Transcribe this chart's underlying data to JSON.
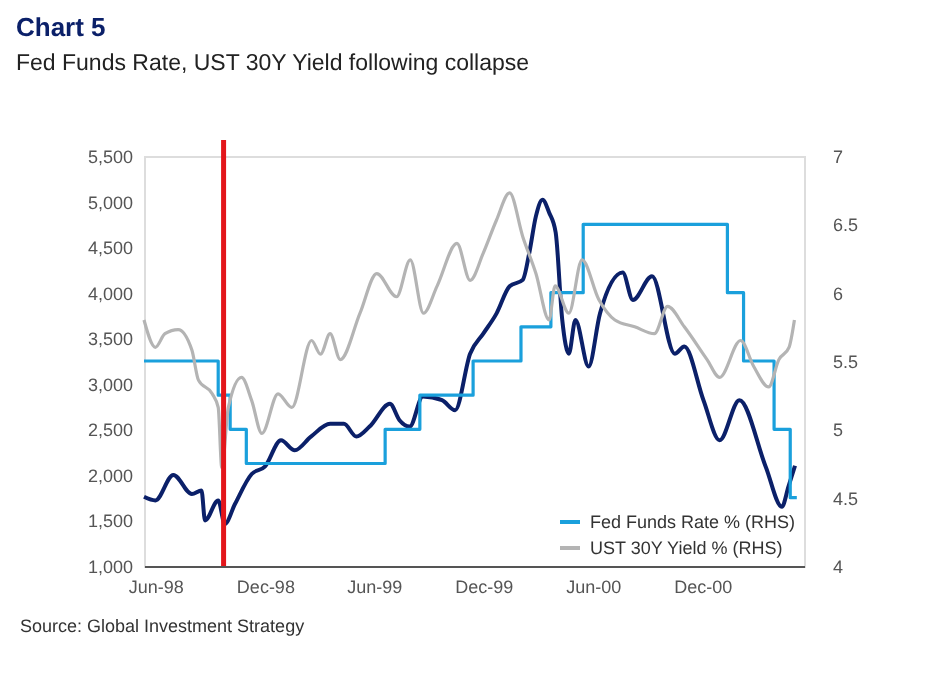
{
  "chart_data": {
    "type": "line",
    "title": "Chart 5",
    "subtitle": "Fed Funds Rate, UST 30Y Yield following collapse",
    "xlim": [
      "1998-05-13",
      "2001-05-20"
    ],
    "xticks": [
      {
        "value": "1998-06-01",
        "label": "Jun-98"
      },
      {
        "value": "1998-12-01",
        "label": "Dec-98"
      },
      {
        "value": "1999-06-01",
        "label": "Jun-99"
      },
      {
        "value": "1999-12-01",
        "label": "Dec-99"
      },
      {
        "value": "2000-06-01",
        "label": "Jun-00"
      },
      {
        "value": "2000-12-01",
        "label": "Dec-00"
      }
    ],
    "ylim": [
      1000,
      5500
    ],
    "yticks": [
      {
        "value": 1000,
        "label": "1,000"
      },
      {
        "value": 1500,
        "label": "1,500"
      },
      {
        "value": 2000,
        "label": "2,000"
      },
      {
        "value": 2500,
        "label": "2,500"
      },
      {
        "value": 3000,
        "label": "3,000"
      },
      {
        "value": 3500,
        "label": "3,500"
      },
      {
        "value": 4000,
        "label": "4,000"
      },
      {
        "value": 4500,
        "label": "4,500"
      },
      {
        "value": 5000,
        "label": "5,000"
      },
      {
        "value": 5500,
        "label": "5,500"
      }
    ],
    "y2lim": [
      4,
      7
    ],
    "y2ticks": [
      4,
      4.5,
      5,
      5.5,
      6,
      6.5,
      7
    ],
    "grid": false,
    "legend": "bottom right",
    "marker": "none",
    "line_style": "solid",
    "ref_lines": [
      {
        "axis": "x",
        "value": "1998-09-23",
        "color": "#e3161b"
      }
    ],
    "annotations": [
      "Source: Global Investment Strategy"
    ],
    "series": [
      {
        "type": "line",
        "color": "#0b2069",
        "x": [
          "1998-05-13",
          "1998-06-01",
          "1998-07-01",
          "1998-08-01",
          "1998-08-17",
          "1998-08-23",
          "1998-09-14",
          "1998-09-25",
          "1998-10-12",
          "1998-11-09",
          "1998-12-01",
          "1998-12-28",
          "1999-01-20",
          "1999-02-16",
          "1999-03-20",
          "1999-04-12",
          "1999-05-03",
          "1999-05-25",
          "1999-06-28",
          "1999-07-14",
          "1999-07-31",
          "1999-08-22",
          "1999-09-23",
          "1999-10-15",
          "1999-11-09",
          "1999-12-01",
          "1999-12-23",
          "2000-01-14",
          "2000-02-05",
          "2000-02-16",
          "2000-02-27",
          "2000-03-09",
          "2000-03-20",
          "2000-03-31",
          "2000-04-11",
          "2000-04-22",
          "2000-05-03",
          "2000-05-25",
          "2000-06-13",
          "2000-07-21",
          "2000-08-07",
          "2000-09-08",
          "2000-10-16",
          "2000-11-01",
          "2000-12-03",
          "2000-12-30",
          "2001-02-01",
          "2001-03-17",
          "2001-04-13",
          "2001-04-24",
          "2001-05-05"
        ],
        "values": [
          1760,
          1720,
          2000,
          1790,
          1830,
          1500,
          1720,
          1460,
          1680,
          2010,
          2090,
          2380,
          2270,
          2420,
          2560,
          2560,
          2420,
          2530,
          2780,
          2600,
          2530,
          2860,
          2820,
          2710,
          3330,
          3550,
          3770,
          4070,
          4140,
          4440,
          4840,
          5020,
          4880,
          4660,
          3700,
          3330,
          3700,
          3190,
          3770,
          4220,
          3920,
          4180,
          3330,
          3410,
          2820,
          2380,
          2820,
          2090,
          1650,
          1870,
          2100
        ]
      },
      {
        "type": "step",
        "axis": "y2",
        "name": "Fed Funds Rate % (RHS)",
        "color": "#1aa0dc",
        "x": [
          "1998-05-13",
          "1998-09-14",
          "1998-10-04",
          "1998-10-31",
          "1999-06-20",
          "1999-08-17",
          "1999-11-14",
          "2000-02-02",
          "2000-03-23",
          "2000-05-16",
          "2001-01-12",
          "2001-02-08",
          "2001-03-31",
          "2001-04-27",
          "2001-05-08"
        ],
        "values": [
          5.5,
          5.25,
          5.0,
          4.75,
          5.0,
          5.25,
          5.5,
          5.75,
          6.0,
          6.5,
          6.0,
          5.5,
          5.0,
          4.5,
          4.5
        ]
      },
      {
        "type": "line",
        "axis": "y2",
        "name": "UST 30Y Yield % (RHS)",
        "color": "#b4b4b4",
        "x": [
          "1998-05-13",
          "1998-06-01",
          "1998-06-17",
          "1998-07-09",
          "1998-08-01",
          "1998-08-12",
          "1998-09-04",
          "1998-09-14",
          "1998-09-20",
          "1998-10-01",
          "1998-10-23",
          "1998-11-09",
          "1998-11-26",
          "1998-12-23",
          "1999-01-15",
          "1999-02-17",
          "1999-03-04",
          "1999-03-20",
          "1999-04-06",
          "1999-05-09",
          "1999-06-06",
          "1999-07-09",
          "1999-08-01",
          "1999-08-23",
          "1999-09-15",
          "1999-10-18",
          "1999-11-09",
          "1999-12-01",
          "1999-12-23",
          "2000-01-14",
          "2000-02-05",
          "2000-02-27",
          "2000-03-20",
          "2000-03-30",
          "2000-04-22",
          "2000-05-14",
          "2000-06-11",
          "2000-07-08",
          "2000-08-10",
          "2000-09-12",
          "2000-10-04",
          "2000-11-01",
          "2000-12-09",
          "2000-12-30",
          "2001-02-03",
          "2001-02-25",
          "2001-03-22",
          "2001-04-08",
          "2001-04-25",
          "2001-05-04"
        ],
        "values": [
          5.8,
          5.6,
          5.7,
          5.73,
          5.58,
          5.36,
          5.26,
          5.16,
          4.72,
          5.16,
          5.38,
          5.21,
          4.97,
          5.26,
          5.16,
          5.65,
          5.55,
          5.7,
          5.51,
          5.85,
          6.14,
          5.97,
          6.24,
          5.85,
          6.05,
          6.36,
          6.09,
          6.29,
          6.53,
          6.73,
          6.41,
          6.14,
          5.8,
          6.05,
          5.85,
          6.24,
          5.95,
          5.8,
          5.75,
          5.7,
          5.9,
          5.75,
          5.51,
          5.38,
          5.65,
          5.46,
          5.31,
          5.51,
          5.6,
          5.8
        ]
      }
    ]
  }
}
